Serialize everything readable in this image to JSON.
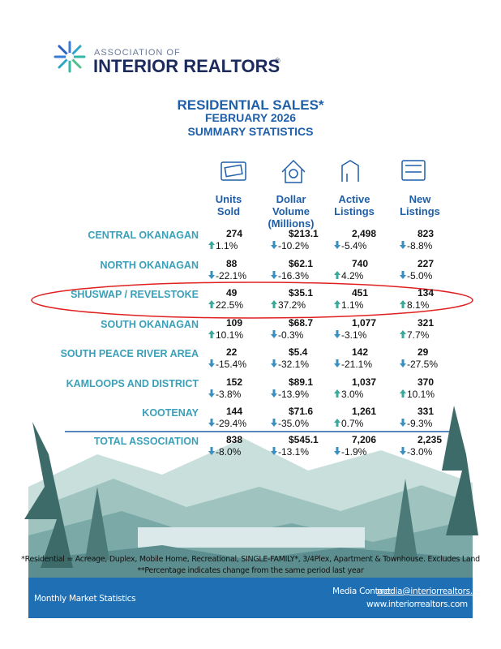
{
  "header": {
    "org_line1": "ASSOCIATION OF",
    "org_line2": "INTERIOR REALTORS",
    "registered": "®"
  },
  "title": [
    "RESIDENTIAL SALES*",
    "FEBRUARY 2026",
    "SUMMARY STATISTICS"
  ],
  "columns": [
    [
      "Units",
      "Sold"
    ],
    [
      "Dollar",
      "Volume",
      "(Millions)"
    ],
    [
      "Active",
      "Listings"
    ],
    [
      "New",
      "Listings"
    ]
  ],
  "table": {
    "rows": [
      {
        "region": "CENTRAL OKANAGAN",
        "cells": [
          {
            "value": "274",
            "change": "1.1%"
          },
          {
            "value": "$213.1",
            "change": "-10.2%"
          },
          {
            "value": "2,498",
            "change": "-5.4%"
          },
          {
            "value": "823",
            "change": "-8.8%"
          }
        ]
      },
      {
        "region": "NORTH OKANAGAN",
        "cells": [
          {
            "value": "88",
            "change": "-22.1%"
          },
          {
            "value": "$62.1",
            "change": "-16.3%"
          },
          {
            "value": "740",
            "change": "4.2%"
          },
          {
            "value": "227",
            "change": "-5.0%"
          }
        ]
      },
      {
        "region": "SHUSWAP / REVELSTOKE",
        "cells": [
          {
            "value": "49",
            "change": "22.5%"
          },
          {
            "value": "$35.1",
            "change": "37.2%"
          },
          {
            "value": "451",
            "change": "1.1%"
          },
          {
            "value": "134",
            "change": "8.1%"
          }
        ]
      },
      {
        "region": "SOUTH OKANAGAN",
        "cells": [
          {
            "value": "109",
            "change": "10.1%"
          },
          {
            "value": "$68.7",
            "change": "-0.3%"
          },
          {
            "value": "1,077",
            "change": "-3.1%"
          },
          {
            "value": "321",
            "change": "7.7%"
          }
        ]
      },
      {
        "region": "SOUTH PEACE RIVER AREA",
        "cells": [
          {
            "value": "22",
            "change": "-15.4%"
          },
          {
            "value": "$5.4",
            "change": "-32.1%"
          },
          {
            "value": "142",
            "change": "-21.1%"
          },
          {
            "value": "29",
            "change": "-27.5%"
          }
        ]
      },
      {
        "region": "KAMLOOPS AND DISTRICT",
        "cells": [
          {
            "value": "152",
            "change": "-3.8%"
          },
          {
            "value": "$89.1",
            "change": "-13.9%"
          },
          {
            "value": "1,037",
            "change": "3.0%"
          },
          {
            "value": "370",
            "change": "10.1%"
          }
        ]
      },
      {
        "region": "KOOTENAY",
        "cells": [
          {
            "value": "144",
            "change": "-29.4%"
          },
          {
            "value": "$71.6",
            "change": "-35.0%"
          },
          {
            "value": "1,261",
            "change": "0.7%"
          },
          {
            "value": "331",
            "change": "-9.3%"
          }
        ]
      }
    ],
    "total": {
      "region": "TOTAL ASSOCIATION",
      "cells": [
        {
          "value": "838",
          "change": "-8.0%"
        },
        {
          "value": "$545.1",
          "change": "-13.1%"
        },
        {
          "value": "7,206",
          "change": "-1.9%"
        },
        {
          "value": "2,235",
          "change": "-3.0%"
        }
      ]
    }
  },
  "footnotes": [
    "*Residential = Acreage, Duplex, Mobile Home, Recreational, SINGLE-FAMILY*, 3/4Plex, Apartment & Townhouse. Excludes Land",
    "**Percentage indicates change from the same period last year"
  ],
  "footer": {
    "left": "Monthly Market Statistics",
    "contact_label": "Media Contact:",
    "email": "media@interiorrealtors.com",
    "website": "www.interiorrealtors.com"
  }
}
